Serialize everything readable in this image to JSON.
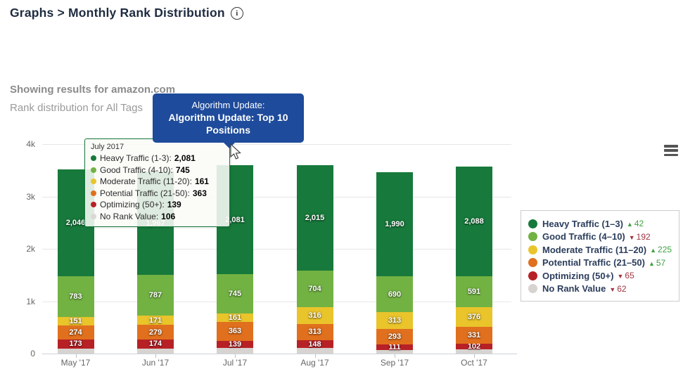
{
  "header": {
    "title": "Graphs > Monthly Rank Distribution",
    "info_icon": "i"
  },
  "subheader": {
    "line1": "Showing results for amazon.com",
    "line2": "Rank distribution for All Tags"
  },
  "annotation": {
    "line1": "Algorithm Update:",
    "line2": "Algorithm Update: Top 10 Positions",
    "color": "#1e4b9b"
  },
  "tooltip": {
    "title": "July 2017",
    "rows": [
      {
        "label": "Heavy Traffic (1-3)",
        "value": "2,081",
        "color": "#17793b"
      },
      {
        "label": "Good Traffic (4-10)",
        "value": "745",
        "color": "#72b243"
      },
      {
        "label": "Moderate Traffic (11-20)",
        "value": "161",
        "color": "#eac42b"
      },
      {
        "label": "Potential Traffic (21-50)",
        "value": "363",
        "color": "#e0701e"
      },
      {
        "label": "Optimizing (50+)",
        "value": "139",
        "color": "#b72126"
      },
      {
        "label": "No Rank Value",
        "value": "106",
        "color": "#dcd8d5"
      }
    ]
  },
  "legend": {
    "items": [
      {
        "label": "Heavy Traffic (1–3)",
        "color": "#17793b",
        "direction": "up",
        "change": "42"
      },
      {
        "label": "Good Traffic (4–10)",
        "color": "#72b243",
        "direction": "down",
        "change": "192"
      },
      {
        "label": "Moderate Traffic (11–20)",
        "color": "#eac42b",
        "direction": "up",
        "change": "225"
      },
      {
        "label": "Potential Traffic (21–50)",
        "color": "#e0701e",
        "direction": "up",
        "change": "57"
      },
      {
        "label": "Optimizing (50+)",
        "color": "#b72126",
        "direction": "down",
        "change": "65"
      },
      {
        "label": "No Rank Value",
        "color": "#d7d3d0",
        "direction": "down",
        "change": "62"
      }
    ],
    "up_color": "#3fa142",
    "down_color": "#a03540"
  },
  "chart_data": {
    "type": "bar",
    "stacked": true,
    "categories": [
      "May '17",
      "Jun '17",
      "Jul '17",
      "Aug '17",
      "Sep '17",
      "Oct '17"
    ],
    "series": [
      {
        "name": "Heavy Traffic (1–3)",
        "color": "#17793b",
        "values": [
          2046,
          1967,
          2081,
          2015,
          1990,
          2088
        ]
      },
      {
        "name": "Good Traffic (4–10)",
        "color": "#72b243",
        "values": [
          783,
          787,
          745,
          704,
          690,
          591
        ]
      },
      {
        "name": "Moderate Traffic (11–20)",
        "color": "#eac42b",
        "values": [
          151,
          171,
          161,
          316,
          313,
          376
        ]
      },
      {
        "name": "Potential Traffic (21–50)",
        "color": "#e0701e",
        "values": [
          274,
          279,
          363,
          313,
          293,
          331
        ]
      },
      {
        "name": "Optimizing (50+)",
        "color": "#b72126",
        "values": [
          173,
          174,
          139,
          148,
          111,
          102
        ]
      },
      {
        "name": "No Rank Value",
        "color": "#d7d3d0",
        "values": [
          95,
          95,
          106,
          105,
          70,
          80
        ],
        "labels_hidden": true,
        "estimated": true
      }
    ],
    "title": "Monthly Rank Distribution",
    "xlabel": "",
    "ylabel": "",
    "ylim": [
      0,
      4000
    ],
    "yticks": [
      {
        "value": 0,
        "label": "0"
      },
      {
        "value": 1000,
        "label": "1k"
      },
      {
        "value": 2000,
        "label": "2k"
      },
      {
        "value": 3000,
        "label": "3k"
      },
      {
        "value": 4000,
        "label": "4k"
      }
    ],
    "grid": true,
    "legend_position": "right"
  }
}
